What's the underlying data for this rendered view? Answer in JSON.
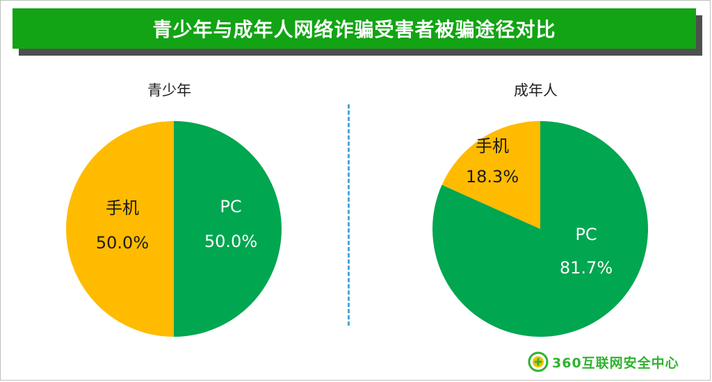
{
  "header": {
    "title": "青少年与成年人网络诈骗受害者被骗途径对比"
  },
  "colors": {
    "pc": "#00a650",
    "mobile": "#ffbb00",
    "banner": "#12a414"
  },
  "chart_data": [
    {
      "type": "pie",
      "title": "青少年",
      "slices": [
        {
          "label": "PC",
          "value": 50.0,
          "value_label": "50.0%",
          "color": "#00a650"
        },
        {
          "label": "手机",
          "value": 50.0,
          "value_label": "50.0%",
          "color": "#ffbb00"
        }
      ]
    },
    {
      "type": "pie",
      "title": "成年人",
      "slices": [
        {
          "label": "PC",
          "value": 81.7,
          "value_label": "81.7%",
          "color": "#00a650"
        },
        {
          "label": "手机",
          "value": 18.3,
          "value_label": "18.3%",
          "color": "#ffbb00"
        }
      ]
    }
  ],
  "footer": {
    "watermark": "360互联网安全中心"
  }
}
